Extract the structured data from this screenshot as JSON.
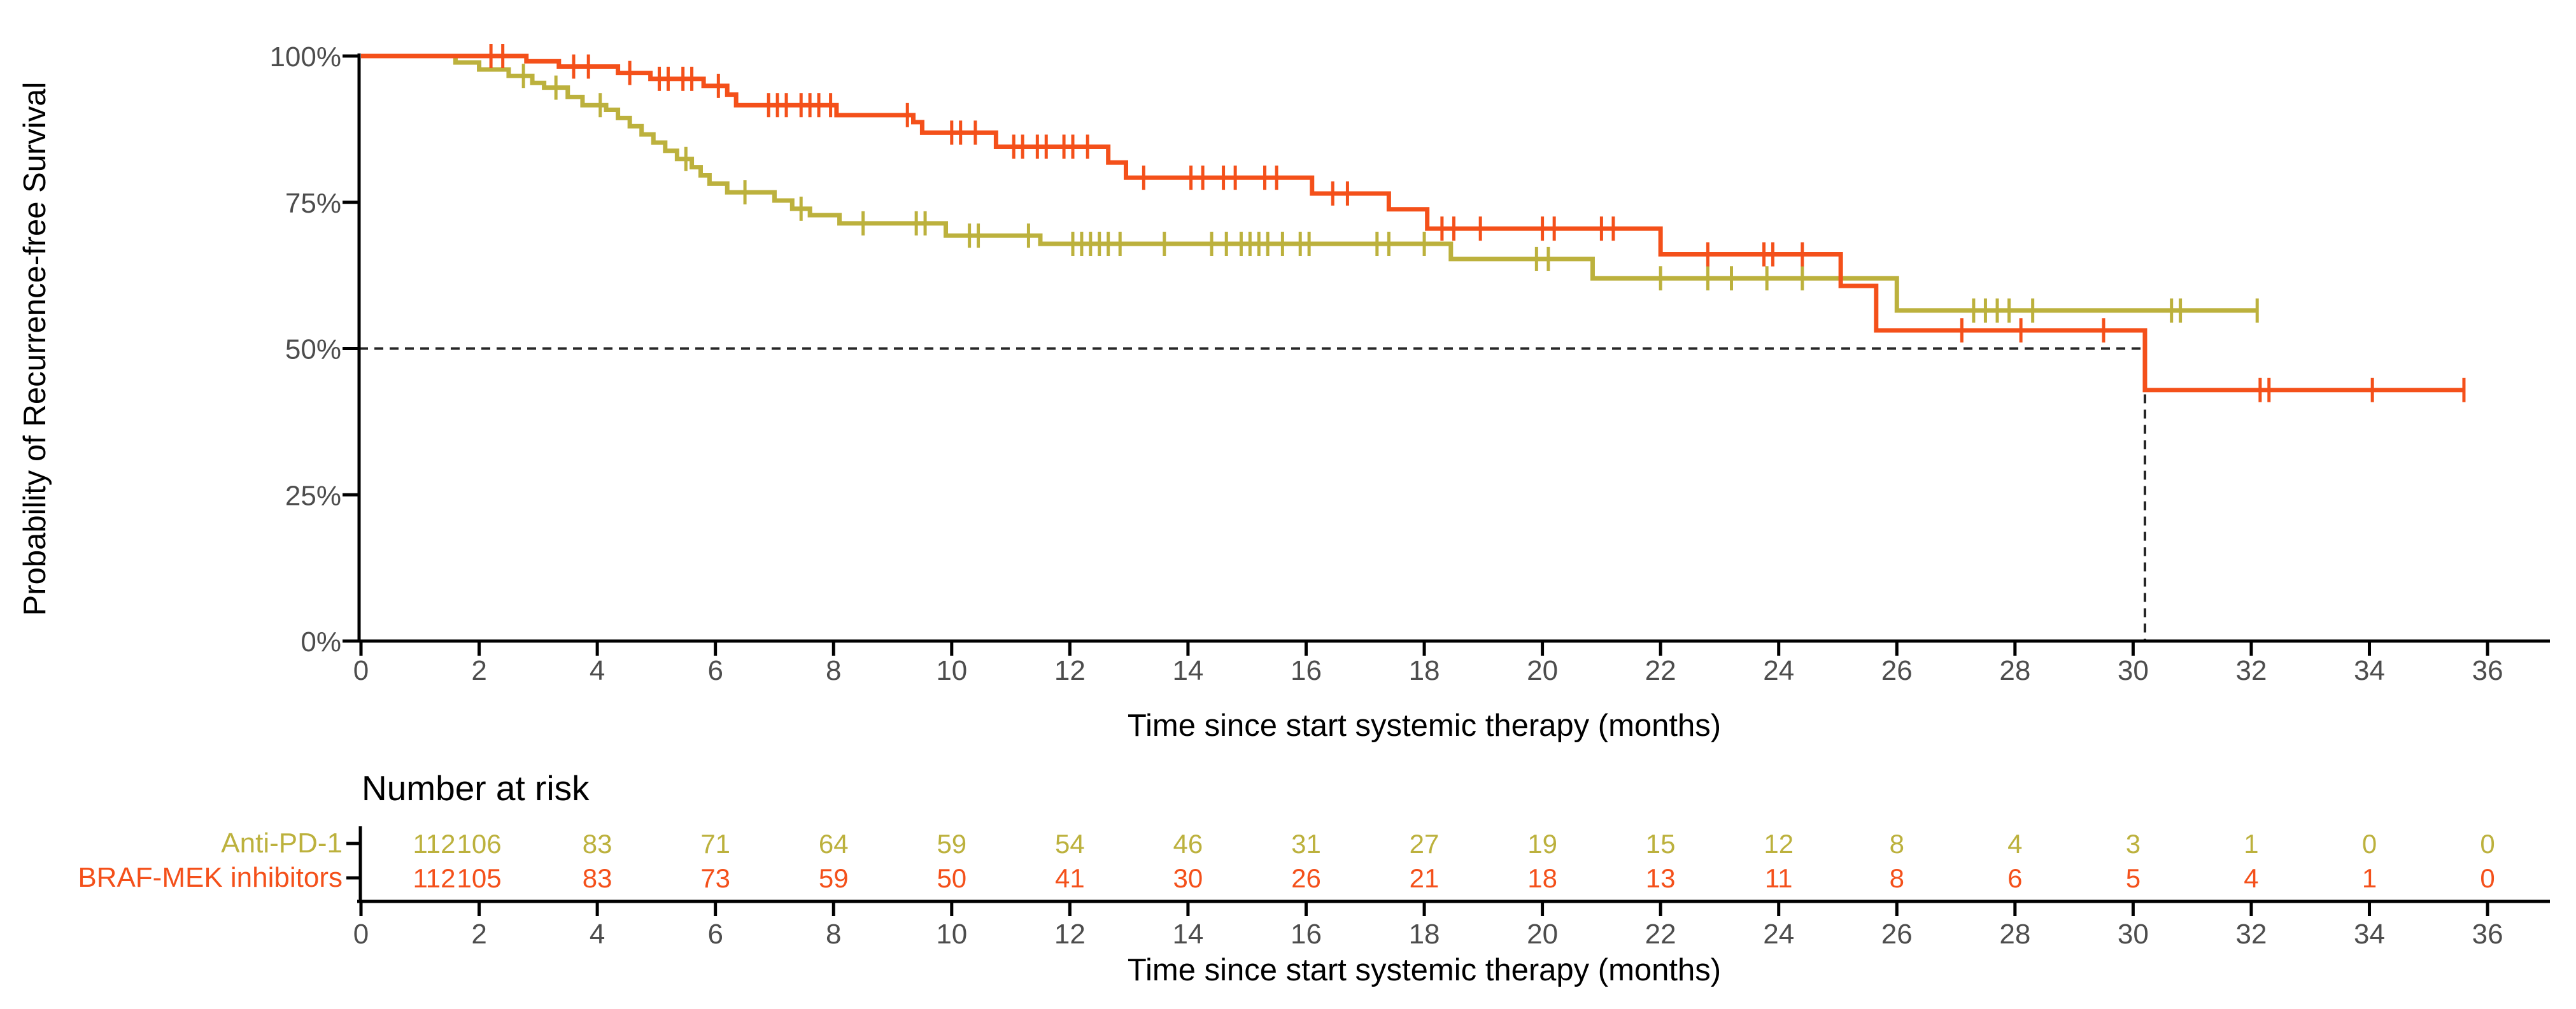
{
  "figure": {
    "y_axis_title": "Probability of Recurrence-free Survival",
    "x_axis_title": "Time since start systemic therapy (months)",
    "risk_table_title": "Number at risk",
    "risk_table_x_axis_title": "Time since start systemic therapy (months)"
  },
  "colors": {
    "anti_pd1": "#BCB13D",
    "braf_mek": "#F4501A",
    "axis": "#000000",
    "tick_label": "#4d4d4d",
    "reference_dash": "#262626",
    "background": "#ffffff"
  },
  "chart_data": {
    "type": "line",
    "subtype": "kaplan-meier-step",
    "title": "",
    "xlabel": "Time since start systemic therapy (months)",
    "ylabel": "Probability of Recurrence-free Survival",
    "xlim": [
      0,
      36
    ],
    "ylim": [
      0,
      100
    ],
    "x_ticks": [
      0,
      2,
      4,
      6,
      8,
      10,
      12,
      14,
      16,
      18,
      20,
      22,
      24,
      26,
      28,
      30,
      32,
      34,
      36
    ],
    "y_ticks": [
      0,
      25,
      50,
      75,
      100
    ],
    "y_tick_labels": [
      "0%",
      "25%",
      "50%",
      "75%",
      "100%"
    ],
    "grid": false,
    "legend_position": "risk-table-left",
    "median_reference": {
      "y_percent": 50,
      "x_months": 30.2,
      "style": "dashed"
    },
    "series": [
      {
        "name": "Anti-PD-1",
        "color": "#BCB13D",
        "steps": [
          [
            0,
            100
          ],
          [
            1.6,
            98.9
          ],
          [
            2.0,
            97.7
          ],
          [
            2.5,
            96.6
          ],
          [
            2.9,
            95.4
          ],
          [
            3.1,
            94.6
          ],
          [
            3.5,
            93.0
          ],
          [
            3.75,
            91.6
          ],
          [
            4.15,
            90.8
          ],
          [
            4.35,
            89.4
          ],
          [
            4.55,
            88.0
          ],
          [
            4.75,
            86.6
          ],
          [
            4.95,
            85.2
          ],
          [
            5.15,
            83.8
          ],
          [
            5.35,
            82.4
          ],
          [
            5.6,
            81.0
          ],
          [
            5.75,
            79.6
          ],
          [
            5.9,
            78.2
          ],
          [
            6.2,
            76.7
          ],
          [
            7.0,
            75.3
          ],
          [
            7.3,
            73.9
          ],
          [
            7.6,
            72.8
          ],
          [
            8.1,
            71.4
          ],
          [
            9.9,
            69.3
          ],
          [
            11.5,
            67.9
          ],
          [
            18.45,
            65.3
          ],
          [
            20.85,
            62.0
          ],
          [
            26.0,
            56.5
          ]
        ],
        "end_time": 32.1,
        "censor_times": [
          2.75,
          3.3,
          4.05,
          5.5,
          6.5,
          7.45,
          8.5,
          9.4,
          9.55,
          10.3,
          10.45,
          11.3,
          12.05,
          12.2,
          12.35,
          12.5,
          12.65,
          12.85,
          13.6,
          14.4,
          14.65,
          14.9,
          15.05,
          15.2,
          15.35,
          15.6,
          15.9,
          16.05,
          17.2,
          17.4,
          18.0,
          19.9,
          20.1,
          22.0,
          22.8,
          23.2,
          23.8,
          24.4,
          27.3,
          27.5,
          27.7,
          27.9,
          28.3,
          30.65,
          30.8,
          32.1
        ]
      },
      {
        "name": "BRAF-MEK inhibitors",
        "color": "#F4501A",
        "steps": [
          [
            0,
            100
          ],
          [
            2.8,
            99.1
          ],
          [
            3.35,
            98.2
          ],
          [
            4.35,
            97.1
          ],
          [
            4.9,
            96.1
          ],
          [
            5.8,
            94.9
          ],
          [
            6.2,
            93.4
          ],
          [
            6.35,
            91.6
          ],
          [
            8.05,
            89.9
          ],
          [
            9.35,
            88.7
          ],
          [
            9.5,
            86.9
          ],
          [
            10.75,
            84.5
          ],
          [
            12.65,
            81.8
          ],
          [
            12.95,
            79.2
          ],
          [
            16.1,
            76.5
          ],
          [
            17.4,
            73.8
          ],
          [
            18.05,
            70.5
          ],
          [
            22.0,
            66.1
          ],
          [
            25.05,
            60.7
          ],
          [
            25.65,
            53.1
          ],
          [
            30.2,
            42.9
          ]
        ],
        "end_time": 35.6,
        "censor_times": [
          2.2,
          2.4,
          3.6,
          3.85,
          4.55,
          5.05,
          5.2,
          5.45,
          5.6,
          6.05,
          6.9,
          7.05,
          7.2,
          7.45,
          7.6,
          7.75,
          7.95,
          9.25,
          10.0,
          10.15,
          10.4,
          11.05,
          11.2,
          11.45,
          11.6,
          11.9,
          12.05,
          12.3,
          13.25,
          14.05,
          14.25,
          14.6,
          14.8,
          15.3,
          15.5,
          16.45,
          16.7,
          18.3,
          18.5,
          18.95,
          20.0,
          20.2,
          21.0,
          21.2,
          22.8,
          23.75,
          23.9,
          24.4,
          27.1,
          28.1,
          29.5,
          32.15,
          32.3,
          34.05,
          35.6
        ]
      }
    ],
    "risk_table": {
      "title": "Number at risk",
      "times": [
        0,
        2,
        4,
        6,
        8,
        10,
        12,
        14,
        16,
        18,
        20,
        22,
        24,
        26,
        28,
        30,
        32,
        34,
        36
      ],
      "rows": [
        {
          "name": "Anti-PD-1",
          "color": "#BCB13D",
          "counts": [
            112,
            106,
            83,
            71,
            64,
            59,
            54,
            46,
            31,
            27,
            19,
            15,
            12,
            8,
            4,
            3,
            1,
            0,
            0
          ]
        },
        {
          "name": "BRAF-MEK inhibitors",
          "color": "#F4501A",
          "counts": [
            112,
            105,
            83,
            73,
            59,
            50,
            41,
            30,
            26,
            21,
            18,
            13,
            11,
            8,
            6,
            5,
            4,
            1,
            0
          ]
        }
      ]
    }
  }
}
